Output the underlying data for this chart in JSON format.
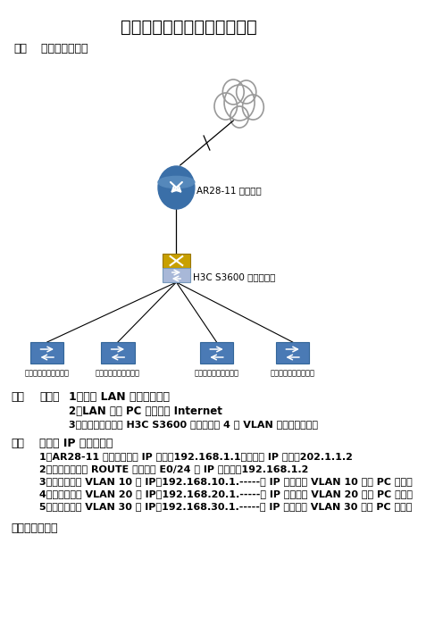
{
  "title": "中小型企业基础网络配置实例",
  "section1_num": "一、",
  "section1_text": "   功能及组网需求",
  "bg_color": "#ffffff",
  "router_label": "AR28-11 型路由器",
  "switch_label": "H3C S3600 三层交换机",
  "l2_switch_label": "无网管协议二层交换机",
  "section2_title": "二、",
  "section2_indent": "需求：",
  "req1": "1、完成 LAN 内的相互通信",
  "req2": "2、LAN 内各 PC 均可访问 Internet",
  "req3": "3、根据需求，要求 H3C S3600 交换机划分 4 个 VLAN 来隔离广播域。",
  "section3_title": "三、",
  "section3_indent": "各设备 IP 地址规划：",
  "ip1": "1、AR28-11 路由器内网口 IP 地址：192.168.1.1，外网口 IP 地址：202.1.1.2",
  "ip2": "2、三层交换机与 ROUTE 相连接的 E0/24 口 IP 地址为：192.168.1.2",
  "ip3": "3、三层交换机 VLAN 10 的 IP：192.168.10.1.-----此 IP 地址作为 VLAN 10 下属 PC 的网关",
  "ip4": "4、三层交换机 VLAN 20 的 IP：192.168.20.1.-----此 IP 地址作为 VLAN 20 下属 PC 的网关",
  "ip5": "5、三层交换机 VLAN 30 的 IP：192.168.30.1.-----此 IP 地址作为 VLAN 30 下层 PC 的网关",
  "section4": "四、具体配置："
}
